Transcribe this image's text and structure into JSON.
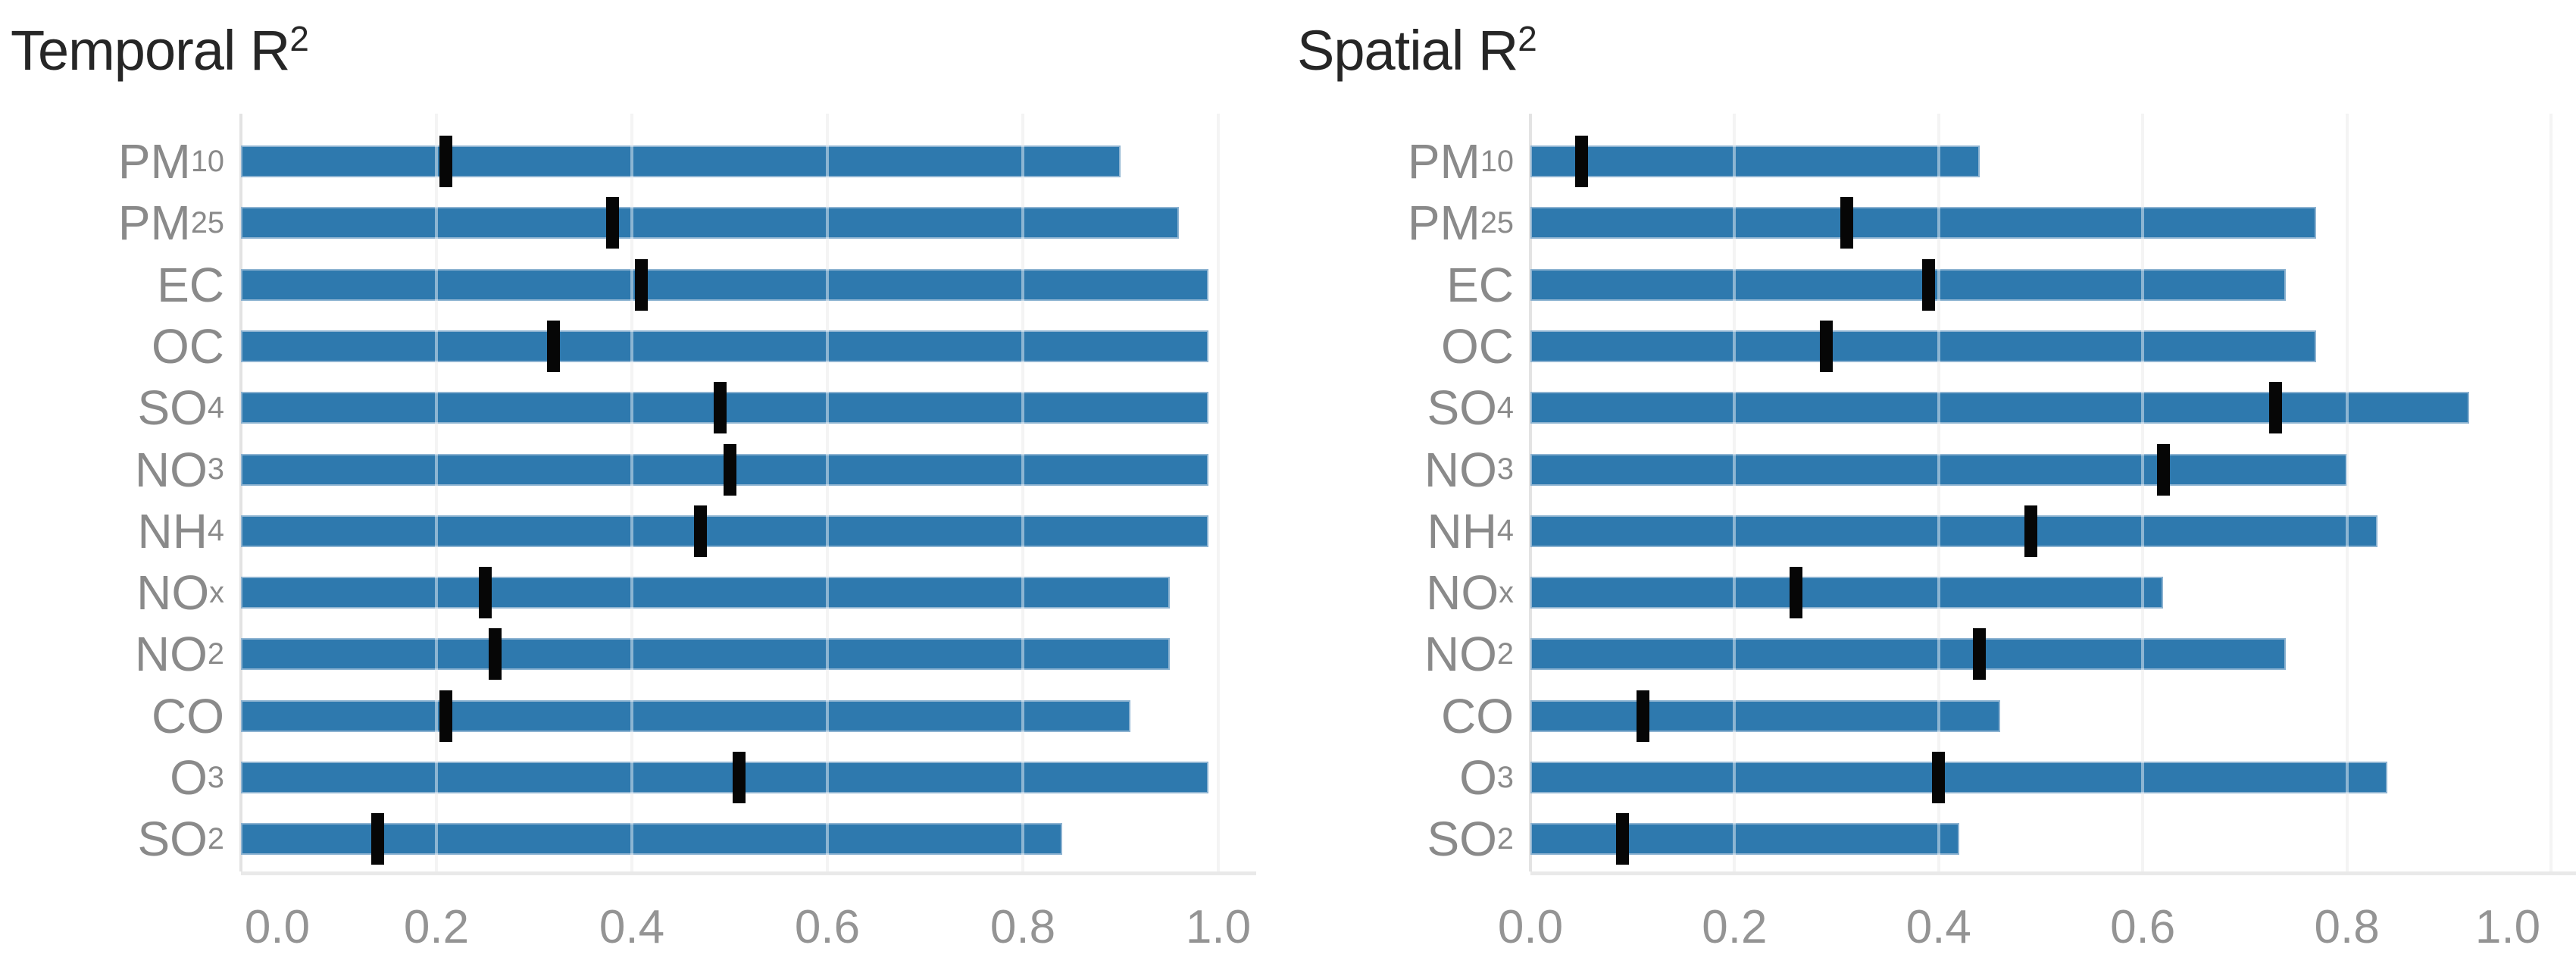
{
  "figure": {
    "background_color": "#ffffff",
    "bar_color": "#2e79ae",
    "bar_edge_color": "#8db3d1",
    "marker_color": "#060606",
    "gridline_color": "#ebebeb",
    "axis_line_color": "#e9e9e9",
    "title_color": "#262626",
    "label_color": "#8a8a8a"
  },
  "chart_data": [
    {
      "type": "bar",
      "orientation": "horizontal",
      "title": "Temporal R",
      "title_superscript": "2",
      "categories": [
        {
          "text": "PM",
          "sub": "10"
        },
        {
          "text": "PM",
          "sub": "25"
        },
        {
          "text": "EC",
          "sub": ""
        },
        {
          "text": "OC",
          "sub": ""
        },
        {
          "text": "SO",
          "sub": "4"
        },
        {
          "text": "NO",
          "sub": "3"
        },
        {
          "text": "NH",
          "sub": "4"
        },
        {
          "text": "NO",
          "sub": "x"
        },
        {
          "text": "NO",
          "sub": "2"
        },
        {
          "text": "CO",
          "sub": ""
        },
        {
          "text": "O",
          "sub": "3"
        },
        {
          "text": "SO",
          "sub": "2"
        }
      ],
      "series": [
        {
          "name": "range-max",
          "values": [
            0.9,
            0.96,
            0.99,
            0.99,
            0.99,
            0.99,
            0.99,
            0.95,
            0.95,
            0.91,
            0.99,
            0.84
          ]
        },
        {
          "name": "median-marker",
          "values": [
            0.21,
            0.38,
            0.41,
            0.32,
            0.49,
            0.5,
            0.47,
            0.25,
            0.26,
            0.21,
            0.51,
            0.14
          ]
        }
      ],
      "xlim": [
        0.0,
        1.0
      ],
      "x_tick_labels": [
        "0.0",
        "0.2",
        "0.4",
        "0.6",
        "0.8",
        "1.0"
      ],
      "grid": "vertical, light, drawn over bars",
      "legend": "none"
    },
    {
      "type": "bar",
      "orientation": "horizontal",
      "title": "Spatial R",
      "title_superscript": "2",
      "categories": [
        {
          "text": "PM",
          "sub": "10"
        },
        {
          "text": "PM",
          "sub": "25"
        },
        {
          "text": "EC",
          "sub": ""
        },
        {
          "text": "OC",
          "sub": ""
        },
        {
          "text": "SO",
          "sub": "4"
        },
        {
          "text": "NO",
          "sub": "3"
        },
        {
          "text": "NH",
          "sub": "4"
        },
        {
          "text": "NO",
          "sub": "x"
        },
        {
          "text": "NO",
          "sub": "2"
        },
        {
          "text": "CO",
          "sub": ""
        },
        {
          "text": "O",
          "sub": "3"
        },
        {
          "text": "SO",
          "sub": "2"
        }
      ],
      "series": [
        {
          "name": "range-max",
          "values": [
            0.44,
            0.77,
            0.74,
            0.77,
            0.92,
            0.8,
            0.83,
            0.62,
            0.74,
            0.46,
            0.84,
            0.42
          ]
        },
        {
          "name": "median-marker",
          "values": [
            0.05,
            0.31,
            0.39,
            0.29,
            0.73,
            0.62,
            0.49,
            0.26,
            0.44,
            0.11,
            0.4,
            0.09
          ]
        }
      ],
      "xlim": [
        0.0,
        1.0
      ],
      "x_tick_labels": [
        "0.0",
        "0.2",
        "0.4",
        "0.6",
        "0.8",
        "1.0"
      ],
      "grid": "vertical, light, drawn over bars",
      "legend": "none"
    }
  ]
}
